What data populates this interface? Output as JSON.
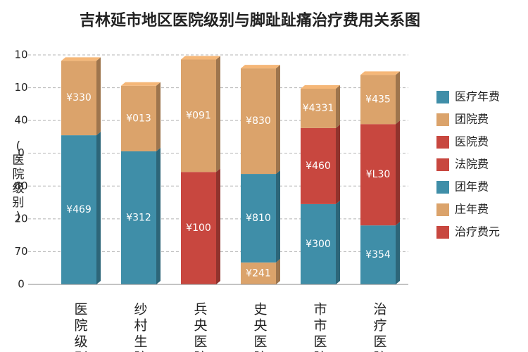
{
  "chart_data": {
    "type": "stacked_bar",
    "title": "吉林延市地区医院级别与脚趾趾痛治疗费用关系图",
    "y_label": "(医院级别)",
    "categories": [
      "医院级别",
      "纱村生院",
      "兵央医院",
      "史央医院",
      "市市医院",
      "治疗医院"
    ],
    "ylim": [
      0,
      7
    ],
    "yticks": [
      {
        "value": 0,
        "label": "0"
      },
      {
        "value": 1,
        "label": "70"
      },
      {
        "value": 2,
        "label": "20"
      },
      {
        "value": 3,
        "label": "60"
      },
      {
        "value": 4,
        "label": "0"
      },
      {
        "value": 5,
        "label": "40"
      },
      {
        "value": 6,
        "label": "10"
      },
      {
        "value": 7,
        "label": "10"
      }
    ],
    "grid": true,
    "legend": "right",
    "series": [
      {
        "name": "医疗年费",
        "color": "#3f8ea8",
        "values": [
          4.55,
          4.06,
          null,
          null,
          2.45,
          1.8
        ],
        "value_labels": [
          "¥469",
          "¥312",
          null,
          null,
          "¥300",
          "¥354"
        ]
      },
      {
        "name": "团院费",
        "color": "#dba36b",
        "values": [
          null,
          null,
          null,
          0.67,
          null,
          null
        ],
        "value_labels": [
          null,
          null,
          null,
          "¥241",
          null,
          null
        ]
      },
      {
        "name": "医院费",
        "color": "#c8473f",
        "values": [
          null,
          null,
          3.43,
          null,
          null,
          3.09
        ],
        "value_labels": [
          null,
          null,
          "¥100",
          null,
          null,
          "¥L30"
        ]
      },
      {
        "name": "法院费",
        "color": "#c8473f",
        "values": [
          null,
          null,
          null,
          null,
          2.32,
          null
        ],
        "value_labels": [
          null,
          null,
          null,
          null,
          "¥460",
          null
        ]
      },
      {
        "name": "团年费",
        "color": "#3f8ea8",
        "values": [
          null,
          null,
          null,
          2.7,
          null,
          null
        ],
        "value_labels": [
          null,
          null,
          null,
          "¥810",
          null,
          null
        ]
      },
      {
        "name": "庄年费",
        "color": "#dba36b",
        "values": [
          2.27,
          2.0,
          3.43,
          3.22,
          1.2,
          1.5
        ],
        "value_labels": [
          "¥330",
          "¥013",
          "¥091",
          "¥830",
          "¥4331",
          "¥435"
        ]
      },
      {
        "name": "治疗费元",
        "color": "#c8473f",
        "values": [
          null,
          null,
          null,
          null,
          null,
          null
        ],
        "value_labels": [
          null,
          null,
          null,
          null,
          null,
          null
        ]
      }
    ]
  }
}
